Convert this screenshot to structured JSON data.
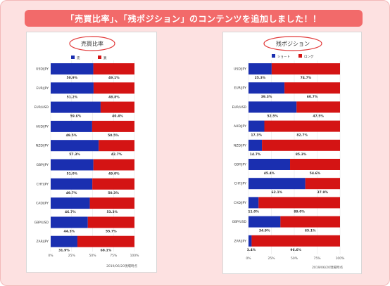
{
  "banner": {
    "text": "「売買比率」、「残ポジション」のコンテンツを追加しました！！"
  },
  "colors": {
    "background": "#fde1e1",
    "banner": "#f26a6a",
    "series_blue": "#1a2fb0",
    "series_red": "#d41414",
    "circle": "#e23b3b"
  },
  "chart_data": [
    {
      "type": "bar",
      "orientation": "horizontal",
      "stacked": true,
      "percent": true,
      "title": "売買比率",
      "categories": [
        "USD/JPY",
        "EUR/JPY",
        "EUR/USD",
        "AUD/JPY",
        "NZD/JPY",
        "GBP/JPY",
        "CHF/JPY",
        "CAD/JPY",
        "GBP/USD",
        "ZAR/JPY"
      ],
      "series": [
        {
          "name": "売",
          "color": "#1a2fb0",
          "values": [
            50.9,
            51.2,
            59.6,
            49.5,
            57.3,
            51.0,
            49.7,
            46.7,
            44.3,
            31.9
          ]
        },
        {
          "name": "買",
          "color": "#d41414",
          "values": [
            49.1,
            48.8,
            40.4,
            50.5,
            42.7,
            49.0,
            50.3,
            53.3,
            55.7,
            68.1
          ]
        }
      ],
      "data_labels": [
        [
          "50.9%",
          "51.2%",
          "59.6%",
          "49.5%",
          "57.3%",
          "51.0%",
          "49.7%",
          "46.7%",
          "44.3%",
          "31.9%"
        ],
        [
          "49.1%",
          "48.8%",
          "40.4%",
          "50.5%",
          "42.7%",
          "49.0%",
          "50.3%",
          "53.3%",
          "55.7%",
          "68.1%"
        ]
      ],
      "xlim": [
        0,
        100
      ],
      "xticks": [
        "0%",
        "25%",
        "50%",
        "75%",
        "100%"
      ],
      "legend": "top-center",
      "footnote": "2019/06/20現場時点"
    },
    {
      "type": "bar",
      "orientation": "horizontal",
      "stacked": true,
      "percent": true,
      "title": "残ポジション",
      "categories": [
        "USD/JPY",
        "EUR/JPY",
        "EUR/USD",
        "AUD/JPY",
        "NZD/JPY",
        "GBP/JPY",
        "CHF/JPY",
        "CAD/JPY",
        "GBP/USD",
        "ZAR/JPY"
      ],
      "series": [
        {
          "name": "ショート",
          "color": "#1a2fb0",
          "values": [
            25.3,
            39.3,
            52.5,
            17.3,
            14.7,
            45.4,
            62.1,
            11.0,
            34.9,
            3.4
          ]
        },
        {
          "name": "ロング",
          "color": "#d41414",
          "values": [
            74.7,
            60.7,
            47.5,
            82.7,
            85.3,
            54.6,
            37.9,
            89.0,
            65.1,
            96.6
          ]
        }
      ],
      "data_labels": [
        [
          "25.3%",
          "39.3%",
          "52.5%",
          "17.3%",
          "14.7%",
          "45.4%",
          "62.1%",
          "11.0%",
          "34.9%",
          "3.4%"
        ],
        [
          "74.7%",
          "60.7%",
          "47.5%",
          "82.7%",
          "85.3%",
          "54.6%",
          "37.9%",
          "89.0%",
          "65.1%",
          "96.6%"
        ]
      ],
      "xlim": [
        0,
        100
      ],
      "xticks": [
        "0%",
        "25%",
        "50%",
        "75%",
        "100%"
      ],
      "legend": "top-center",
      "footnote": "2019/06/20現場時点"
    }
  ]
}
